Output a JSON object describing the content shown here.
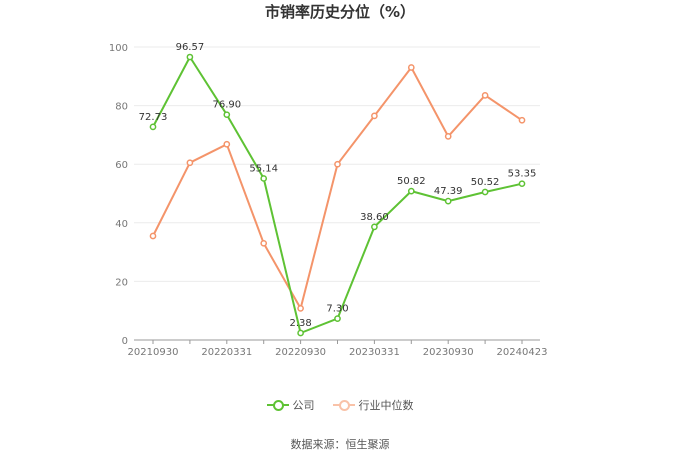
{
  "title": "市销率历史分位（%）",
  "source_text": "数据来源：恒生聚源",
  "chart_data": {
    "type": "line",
    "x": [
      "20210930",
      "20211231",
      "20220331",
      "20220630",
      "20220930",
      "20221231",
      "20230331",
      "20230630",
      "20230930",
      "20231231",
      "20240423"
    ],
    "x_tick_labels": [
      "20210930",
      "20220331",
      "20220930",
      "20230331",
      "20230930",
      "20240423"
    ],
    "ylim": [
      0,
      100
    ],
    "y_ticks": [
      0,
      20,
      40,
      60,
      80,
      100
    ],
    "grid": true,
    "legend_position": "bottom",
    "series": [
      {
        "name": "公司",
        "color": "#5ec234",
        "values": [
          72.73,
          96.57,
          76.9,
          55.14,
          2.38,
          7.3,
          38.6,
          50.82,
          47.39,
          50.52,
          53.35
        ],
        "labels": [
          "72.73",
          "96.57",
          "76.90",
          "55.14",
          "2.38",
          "7.30",
          "38.60",
          "50.82",
          "47.39",
          "50.52",
          "53.35"
        ]
      },
      {
        "name": "行业中位数",
        "color": "#f4946a",
        "values": [
          35.5,
          60.5,
          66.8,
          33.0,
          10.8,
          60.0,
          76.5,
          93.0,
          69.5,
          83.5,
          75.0
        ]
      }
    ]
  }
}
